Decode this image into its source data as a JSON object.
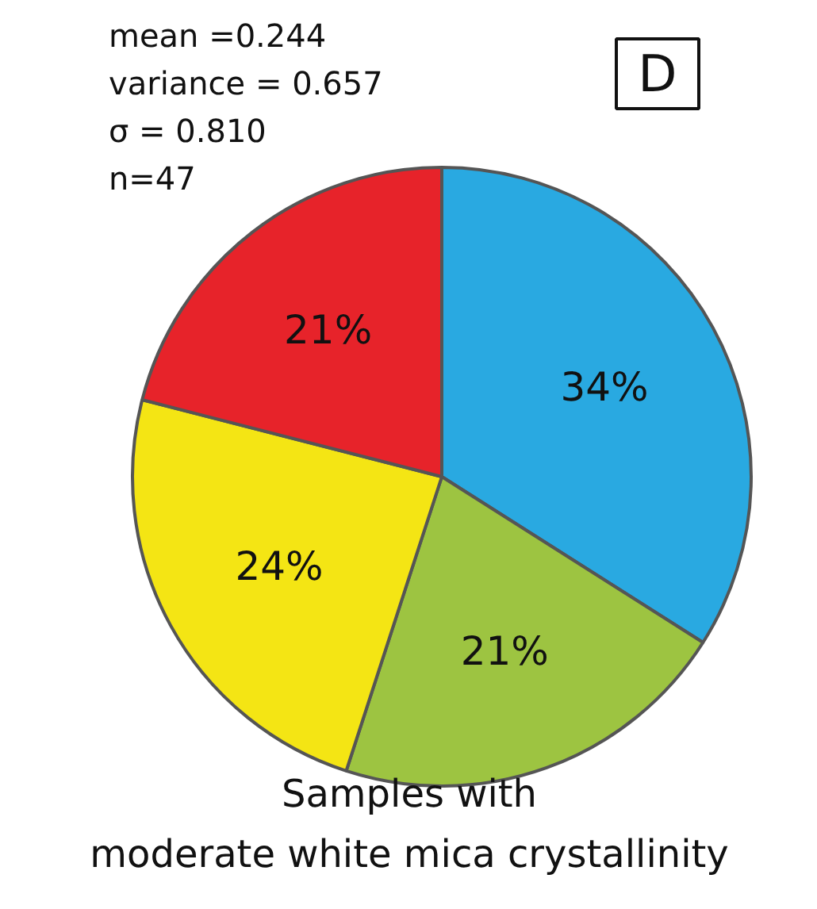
{
  "chart_data": {
    "type": "pie",
    "title": "Samples with\nmoderate white mica crystallinity",
    "categories": [
      null,
      null,
      null,
      null
    ],
    "values": [
      34,
      21,
      24,
      21
    ],
    "colors": [
      "#29a9e1",
      "#9dc441",
      "#f4e514",
      "#e7232a"
    ],
    "value_labels": [
      "34%",
      "21%",
      "24%",
      "21%"
    ],
    "annotations": [
      "mean =0.244",
      "variance = 0.657",
      "σ = 0.810",
      "n=47",
      "D"
    ]
  }
}
